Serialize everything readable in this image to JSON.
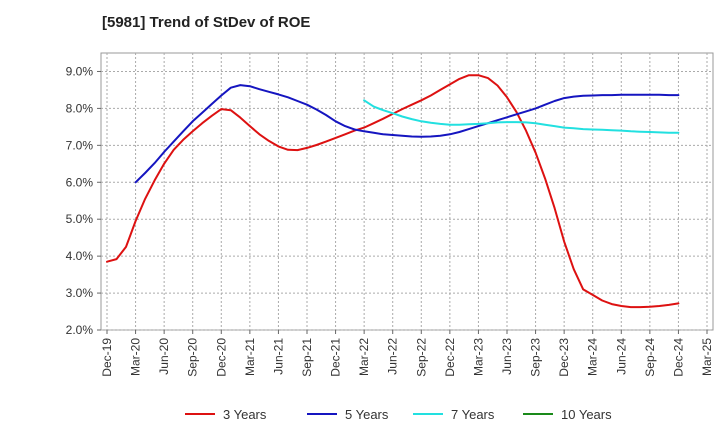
{
  "chart_data": {
    "type": "line",
    "title": "[5981]  Trend of StDev of ROE",
    "xlabel": "",
    "ylabel": "",
    "x_ticks": [
      "Dec-19",
      "Mar-20",
      "Jun-20",
      "Sep-20",
      "Dec-20",
      "Mar-21",
      "Jun-21",
      "Sep-21",
      "Dec-21",
      "Mar-22",
      "Jun-22",
      "Sep-22",
      "Dec-22",
      "Mar-23",
      "Jun-23",
      "Sep-23",
      "Dec-23",
      "Mar-24",
      "Jun-24",
      "Sep-24",
      "Dec-24",
      "Mar-25"
    ],
    "y_ticks": [
      "2.0%",
      "3.0%",
      "4.0%",
      "5.0%",
      "6.0%",
      "7.0%",
      "8.0%",
      "9.0%"
    ],
    "ylim": [
      2.0,
      9.5
    ],
    "grid": true,
    "legend_position": "bottom",
    "series": [
      {
        "name": "3 Years",
        "color": "#dd1111",
        "points": [
          [
            "Dec-19",
            3.85
          ],
          [
            "Jan-20",
            3.92
          ],
          [
            "Feb-20",
            4.25
          ],
          [
            "Mar-20",
            4.95
          ],
          [
            "Apr-20",
            5.55
          ],
          [
            "May-20",
            6.05
          ],
          [
            "Jun-20",
            6.5
          ],
          [
            "Jul-20",
            6.88
          ],
          [
            "Aug-20",
            7.15
          ],
          [
            "Sep-20",
            7.38
          ],
          [
            "Oct-20",
            7.6
          ],
          [
            "Nov-20",
            7.8
          ],
          [
            "Dec-20",
            7.98
          ],
          [
            "Jan-21",
            7.95
          ],
          [
            "Feb-21",
            7.75
          ],
          [
            "Mar-21",
            7.52
          ],
          [
            "Apr-21",
            7.3
          ],
          [
            "May-21",
            7.12
          ],
          [
            "Jun-21",
            6.97
          ],
          [
            "Jul-21",
            6.88
          ],
          [
            "Aug-21",
            6.87
          ],
          [
            "Sep-21",
            6.93
          ],
          [
            "Oct-21",
            7.01
          ],
          [
            "Nov-21",
            7.1
          ],
          [
            "Dec-21",
            7.2
          ],
          [
            "Jan-22",
            7.3
          ],
          [
            "Feb-22",
            7.4
          ],
          [
            "Mar-22",
            7.48
          ],
          [
            "Apr-22",
            7.6
          ],
          [
            "May-22",
            7.72
          ],
          [
            "Jun-22",
            7.85
          ],
          [
            "Jul-22",
            7.98
          ],
          [
            "Aug-22",
            8.1
          ],
          [
            "Sep-22",
            8.22
          ],
          [
            "Oct-22",
            8.35
          ],
          [
            "Nov-22",
            8.5
          ],
          [
            "Dec-22",
            8.65
          ],
          [
            "Jan-23",
            8.8
          ],
          [
            "Feb-23",
            8.9
          ],
          [
            "Mar-23",
            8.9
          ],
          [
            "Apr-23",
            8.82
          ],
          [
            "May-23",
            8.62
          ],
          [
            "Jun-23",
            8.3
          ],
          [
            "Jul-23",
            7.9
          ],
          [
            "Aug-23",
            7.4
          ],
          [
            "Sep-23",
            6.8
          ],
          [
            "Oct-23",
            6.1
          ],
          [
            "Nov-23",
            5.3
          ],
          [
            "Dec-23",
            4.4
          ],
          [
            "Jan-24",
            3.65
          ],
          [
            "Feb-24",
            3.1
          ],
          [
            "Mar-24",
            2.95
          ],
          [
            "Apr-24",
            2.8
          ],
          [
            "May-24",
            2.7
          ],
          [
            "Jun-24",
            2.65
          ],
          [
            "Jul-24",
            2.62
          ],
          [
            "Aug-24",
            2.62
          ],
          [
            "Sep-24",
            2.63
          ],
          [
            "Oct-24",
            2.65
          ],
          [
            "Nov-24",
            2.68
          ],
          [
            "Dec-24",
            2.72
          ]
        ]
      },
      {
        "name": "5 Years",
        "color": "#1515c0",
        "points": [
          [
            "Mar-20",
            6.0
          ],
          [
            "Apr-20",
            6.25
          ],
          [
            "May-20",
            6.52
          ],
          [
            "Jun-20",
            6.82
          ],
          [
            "Jul-20",
            7.1
          ],
          [
            "Aug-20",
            7.38
          ],
          [
            "Sep-20",
            7.65
          ],
          [
            "Oct-20",
            7.88
          ],
          [
            "Nov-20",
            8.12
          ],
          [
            "Dec-20",
            8.35
          ],
          [
            "Jan-21",
            8.56
          ],
          [
            "Feb-21",
            8.63
          ],
          [
            "Mar-21",
            8.6
          ],
          [
            "Apr-21",
            8.52
          ],
          [
            "May-21",
            8.45
          ],
          [
            "Jun-21",
            8.38
          ],
          [
            "Jul-21",
            8.3
          ],
          [
            "Aug-21",
            8.2
          ],
          [
            "Sep-21",
            8.1
          ],
          [
            "Oct-21",
            7.97
          ],
          [
            "Nov-21",
            7.82
          ],
          [
            "Dec-21",
            7.65
          ],
          [
            "Jan-22",
            7.52
          ],
          [
            "Feb-22",
            7.43
          ],
          [
            "Mar-22",
            7.38
          ],
          [
            "Apr-22",
            7.34
          ],
          [
            "May-22",
            7.3
          ],
          [
            "Jun-22",
            7.28
          ],
          [
            "Jul-22",
            7.26
          ],
          [
            "Aug-22",
            7.24
          ],
          [
            "Sep-22",
            7.23
          ],
          [
            "Oct-22",
            7.24
          ],
          [
            "Nov-22",
            7.26
          ],
          [
            "Dec-22",
            7.3
          ],
          [
            "Jan-23",
            7.36
          ],
          [
            "Feb-23",
            7.44
          ],
          [
            "Mar-23",
            7.52
          ],
          [
            "Apr-23",
            7.6
          ],
          [
            "May-23",
            7.68
          ],
          [
            "Jun-23",
            7.76
          ],
          [
            "Jul-23",
            7.84
          ],
          [
            "Aug-23",
            7.92
          ],
          [
            "Sep-23",
            8.0
          ],
          [
            "Oct-23",
            8.1
          ],
          [
            "Nov-23",
            8.2
          ],
          [
            "Dec-23",
            8.28
          ],
          [
            "Jan-24",
            8.32
          ],
          [
            "Feb-24",
            8.34
          ],
          [
            "Mar-24",
            8.35
          ],
          [
            "Apr-24",
            8.36
          ],
          [
            "May-24",
            8.36
          ],
          [
            "Jun-24",
            8.37
          ],
          [
            "Jul-24",
            8.37
          ],
          [
            "Aug-24",
            8.37
          ],
          [
            "Sep-24",
            8.37
          ],
          [
            "Oct-24",
            8.37
          ],
          [
            "Nov-24",
            8.36
          ],
          [
            "Dec-24",
            8.36
          ]
        ]
      },
      {
        "name": "7 Years",
        "color": "#22e0e0",
        "points": [
          [
            "Mar-22",
            8.22
          ],
          [
            "Apr-22",
            8.05
          ],
          [
            "May-22",
            7.95
          ],
          [
            "Jun-22",
            7.87
          ],
          [
            "Jul-22",
            7.78
          ],
          [
            "Aug-22",
            7.71
          ],
          [
            "Sep-22",
            7.65
          ],
          [
            "Oct-22",
            7.61
          ],
          [
            "Nov-22",
            7.58
          ],
          [
            "Dec-22",
            7.56
          ],
          [
            "Jan-23",
            7.56
          ],
          [
            "Feb-23",
            7.57
          ],
          [
            "Mar-23",
            7.58
          ],
          [
            "Apr-23",
            7.6
          ],
          [
            "May-23",
            7.62
          ],
          [
            "Jun-23",
            7.63
          ],
          [
            "Jul-23",
            7.63
          ],
          [
            "Aug-23",
            7.62
          ],
          [
            "Sep-23",
            7.6
          ],
          [
            "Oct-23",
            7.56
          ],
          [
            "Nov-23",
            7.52
          ],
          [
            "Dec-23",
            7.48
          ],
          [
            "Jan-24",
            7.46
          ],
          [
            "Feb-24",
            7.44
          ],
          [
            "Mar-24",
            7.43
          ],
          [
            "Apr-24",
            7.42
          ],
          [
            "May-24",
            7.41
          ],
          [
            "Jun-24",
            7.4
          ],
          [
            "Jul-24",
            7.38
          ],
          [
            "Aug-24",
            7.37
          ],
          [
            "Sep-24",
            7.36
          ],
          [
            "Oct-24",
            7.35
          ],
          [
            "Nov-24",
            7.34
          ],
          [
            "Dec-24",
            7.34
          ]
        ]
      },
      {
        "name": "10 Years",
        "color": "#1a8a1a",
        "points": []
      }
    ]
  }
}
